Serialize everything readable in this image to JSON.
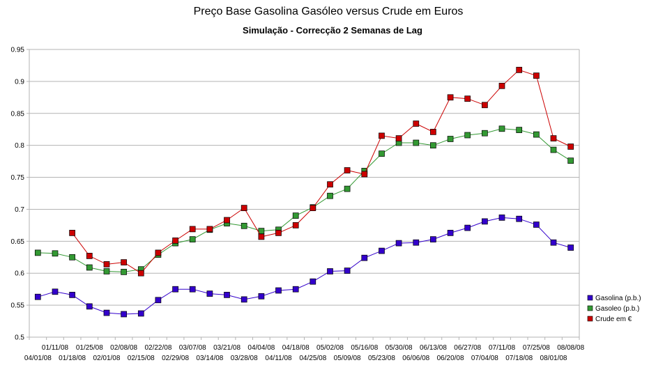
{
  "chart_data": {
    "type": "line",
    "title": "Preço Base Gasolina Gasóleo versus Crude em Euros",
    "subtitle": "Simulação - Correcção 2 Semanas de Lag",
    "xlabel": "",
    "ylabel": "",
    "ylim": [
      0.5,
      0.95
    ],
    "yticks": [
      "0.5",
      "0.55",
      "0.6",
      "0.65",
      "0.7",
      "0.75",
      "0.8",
      "0.85",
      "0.9",
      "0.95"
    ],
    "grid": true,
    "legend_position": "right",
    "x": [
      "04/01/08",
      "01/11/08",
      "01/18/08",
      "01/25/08",
      "02/01/08",
      "02/08/08",
      "02/15/08",
      "02/22/08",
      "02/29/08",
      "03/07/08",
      "03/14/08",
      "03/21/08",
      "03/28/08",
      "04/04/08",
      "04/11/08",
      "04/18/08",
      "04/25/08",
      "05/02/08",
      "05/09/08",
      "05/16/08",
      "05/23/08",
      "05/30/08",
      "06/06/08",
      "06/13/08",
      "06/20/08",
      "06/27/08",
      "07/04/08",
      "07/11/08",
      "07/18/08",
      "07/25/08",
      "08/01/08",
      "08/08/08"
    ],
    "series": [
      {
        "name": "Gasolina (p.b.)",
        "color": "#3300cc",
        "values": [
          0.563,
          0.571,
          0.566,
          0.548,
          0.538,
          0.536,
          0.537,
          0.558,
          0.575,
          0.575,
          0.568,
          0.566,
          0.559,
          0.564,
          0.573,
          0.575,
          0.587,
          0.603,
          0.604,
          0.624,
          0.635,
          0.647,
          0.648,
          0.653,
          0.663,
          0.671,
          0.681,
          0.687,
          0.685,
          0.676,
          0.648,
          0.64
        ]
      },
      {
        "name": "Gasoleo (p.b.)",
        "color": "#339933",
        "values": [
          0.632,
          0.631,
          0.625,
          0.609,
          0.603,
          0.602,
          0.606,
          0.629,
          0.647,
          0.653,
          0.668,
          0.678,
          0.674,
          0.666,
          0.668,
          0.69,
          0.703,
          0.721,
          0.732,
          0.76,
          0.787,
          0.804,
          0.804,
          0.8,
          0.81,
          0.816,
          0.819,
          0.826,
          0.824,
          0.817,
          0.793,
          0.776
        ]
      },
      {
        "name": "Crude em €",
        "color": "#cc0000",
        "values": [
          null,
          null,
          0.663,
          0.627,
          0.614,
          0.617,
          0.6,
          0.632,
          0.651,
          0.669,
          0.669,
          0.683,
          0.702,
          0.657,
          0.663,
          0.675,
          0.702,
          0.739,
          0.761,
          0.755,
          0.815,
          0.811,
          0.834,
          0.821,
          0.875,
          0.873,
          0.863,
          0.893,
          0.918,
          0.909,
          0.811,
          0.798
        ]
      }
    ]
  }
}
